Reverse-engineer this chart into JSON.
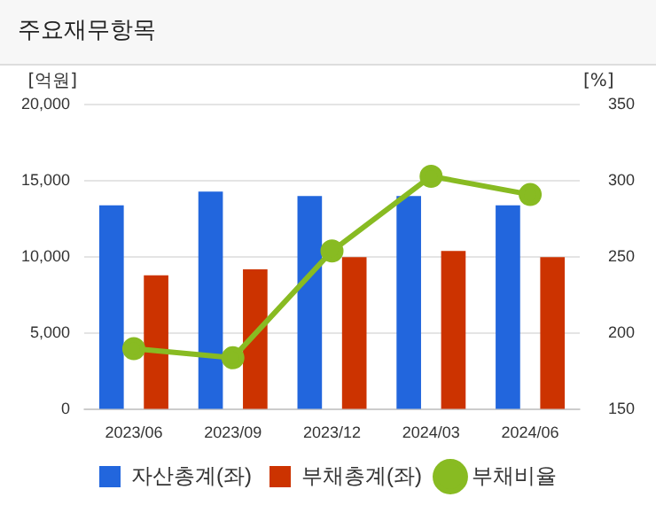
{
  "chart_data": {
    "type": "bar",
    "title": "주요재무항목",
    "ylabel": "[억원]",
    "y2label": "[%]",
    "categories": [
      "2023/06",
      "2023/09",
      "2023/12",
      "2024/03",
      "2024/06"
    ],
    "series": [
      {
        "name": "자산총계(좌)",
        "color": "#2266dd",
        "values": [
          13400,
          14300,
          14000,
          14000,
          13400
        ]
      },
      {
        "name": "부채총계(좌)",
        "color": "#cc3300",
        "values": [
          8800,
          9200,
          10000,
          10400,
          10000
        ]
      },
      {
        "name": "부채비율",
        "type": "line",
        "axis": "y2",
        "color": "#88bb22",
        "values": [
          190,
          184,
          254,
          303,
          291
        ]
      }
    ],
    "ylim": [
      0,
      20000
    ],
    "yticks": [
      0,
      {
        "value": 5000,
        "label": "5,000"
      },
      {
        "value": 10000,
        "label": "10,000"
      },
      {
        "value": 15000,
        "label": "15,000"
      },
      {
        "value": 20000,
        "label": "20,000"
      }
    ],
    "y2lim": [
      150,
      350
    ],
    "y2ticks": [
      150,
      200,
      250,
      300,
      350
    ],
    "grid": "y",
    "legend": "bottom",
    "marker": "circle"
  }
}
